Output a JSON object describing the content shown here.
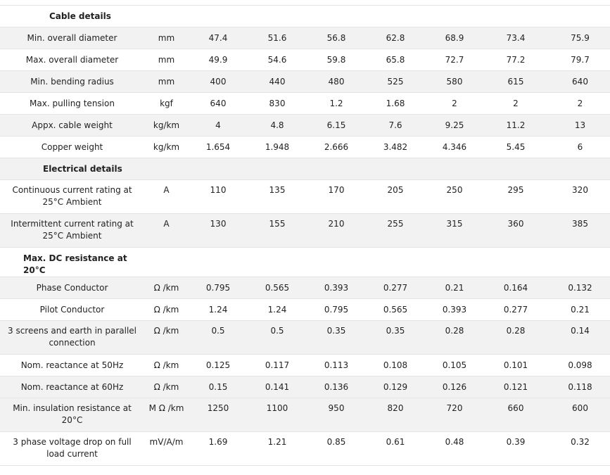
{
  "sections": [
    {
      "title": "Cable details",
      "rows": [
        {
          "label": "Min. overall diameter",
          "unit": "mm",
          "values": [
            "47.4",
            "51.6",
            "56.8",
            "62.8",
            "68.9",
            "73.4",
            "75.9"
          ]
        },
        {
          "label": "Max. overall diameter",
          "unit": "mm",
          "values": [
            "49.9",
            "54.6",
            "59.8",
            "65.8",
            "72.7",
            "77.2",
            "79.7"
          ]
        },
        {
          "label": "Min. bending radius",
          "unit": "mm",
          "values": [
            "400",
            "440",
            "480",
            "525",
            "580",
            "615",
            "640"
          ]
        },
        {
          "label": "Max. pulling tension",
          "unit": "kgf",
          "values": [
            "640",
            "830",
            "1.2",
            "1.68",
            "2",
            "2",
            "2"
          ]
        },
        {
          "label": "Appx. cable weight",
          "unit": "kg/km",
          "values": [
            "4",
            "4.8",
            "6.15",
            "7.6",
            "9.25",
            "11.2",
            "13"
          ]
        },
        {
          "label": "Copper weight",
          "unit": "kg/km",
          "values": [
            "1.654",
            "1.948",
            "2.666",
            "3.482",
            "4.346",
            "5.45",
            "6"
          ]
        }
      ]
    },
    {
      "title": "Electrical details",
      "rows": [
        {
          "label": "Continuous current rating at 25°C Ambient",
          "unit": "A",
          "values": [
            "110",
            "135",
            "170",
            "205",
            "250",
            "295",
            "320"
          ]
        },
        {
          "label": "Intermittent current rating at 25°C Ambient",
          "unit": "A",
          "values": [
            "130",
            "155",
            "210",
            "255",
            "315",
            "360",
            "385"
          ]
        }
      ]
    },
    {
      "title": "Max. DC resistance at 20°C",
      "rows": [
        {
          "label": "Phase Conductor",
          "unit": "Ω /km",
          "values": [
            "0.795",
            "0.565",
            "0.393",
            "0.277",
            "0.21",
            "0.164",
            "0.132"
          ]
        },
        {
          "label": "Pilot Conductor",
          "unit": "Ω /km",
          "values": [
            "1.24",
            "1.24",
            "0.795",
            "0.565",
            "0.393",
            "0.277",
            "0.21"
          ]
        },
        {
          "label": "3 screens and earth in parallel connection",
          "unit": "Ω /km",
          "values": [
            "0.5",
            "0.5",
            "0.35",
            "0.35",
            "0.28",
            "0.28",
            "0.14"
          ]
        },
        {
          "label": "Nom. reactance at 50Hz",
          "unit": "Ω /km",
          "values": [
            "0.125",
            "0.117",
            "0.113",
            "0.108",
            "0.105",
            "0.101",
            "0.098"
          ]
        },
        {
          "label": "Nom. reactance at 60Hz",
          "unit": "Ω /km",
          "values": [
            "0.15",
            "0.141",
            "0.136",
            "0.129",
            "0.126",
            "0.121",
            "0.118"
          ]
        },
        {
          "label": "Min. insulation resistance at 20°C",
          "unit": "M Ω /km",
          "values": [
            "1250",
            "1100",
            "950",
            "820",
            "720",
            "660",
            "600"
          ]
        },
        {
          "label": "3 phase voltage drop on full load current",
          "unit": "mV/A/m",
          "values": [
            "1.69",
            "1.21",
            "0.85",
            "0.61",
            "0.48",
            "0.39",
            "0.32"
          ]
        }
      ]
    }
  ]
}
